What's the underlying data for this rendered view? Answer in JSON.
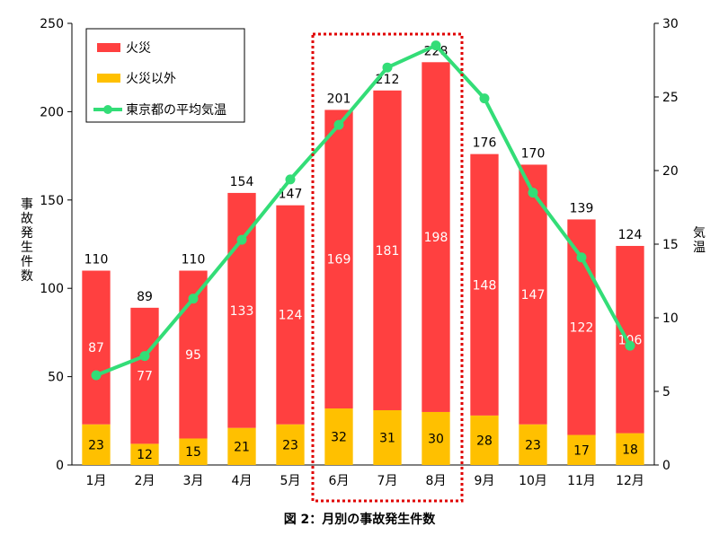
{
  "caption": "図 2：月別の事故発生件数",
  "colors": {
    "fire": "#ff4040",
    "non_fire": "#ffc000",
    "temp": "#33dd77",
    "highlight": "#e00000",
    "axis": "#000000"
  },
  "chart_data": {
    "type": "bar",
    "stacked": true,
    "categories": [
      "1月",
      "2月",
      "3月",
      "4月",
      "5月",
      "6月",
      "7月",
      "8月",
      "9月",
      "10月",
      "11月",
      "12月"
    ],
    "series": [
      {
        "name": "火災以外",
        "values": [
          23,
          12,
          15,
          21,
          23,
          32,
          31,
          30,
          28,
          23,
          17,
          18
        ]
      },
      {
        "name": "火災",
        "values": [
          87,
          77,
          95,
          133,
          124,
          169,
          181,
          198,
          148,
          147,
          122,
          106
        ]
      }
    ],
    "totals": [
      110,
      89,
      110,
      154,
      147,
      201,
      212,
      228,
      176,
      170,
      139,
      124
    ],
    "line": {
      "name": "東京都の平均気温",
      "axis": "right",
      "values": [
        6.1,
        7.4,
        11.3,
        15.3,
        19.4,
        23.1,
        27.0,
        28.5,
        24.9,
        18.5,
        14.1,
        8.1
      ]
    },
    "ylabel": "事故発生件数",
    "y2label": "気温",
    "ylim": [
      0,
      250
    ],
    "y2lim": [
      0,
      30
    ],
    "yticks": [
      0,
      50,
      100,
      150,
      200,
      250
    ],
    "y2ticks": [
      0,
      5,
      10,
      15,
      20,
      25,
      30
    ],
    "legend": {
      "position": "top-left",
      "entries": [
        "火災",
        "火災以外",
        "東京都の平均気温"
      ]
    },
    "highlight_categories": [
      "6月",
      "7月",
      "8月"
    ]
  }
}
